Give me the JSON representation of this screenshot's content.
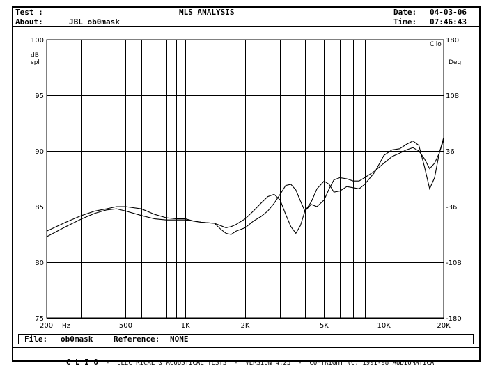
{
  "header": {
    "test_label": "Test :",
    "title": "MLS ANALYSIS",
    "date_label": "Date:",
    "date_value": "04-03-06",
    "about_label": "About:",
    "about_value": "JBL ob0mask",
    "time_label": "Time:",
    "time_value": "07:46:43"
  },
  "footer": {
    "file_label": "File:",
    "file_value": "ob0mask",
    "reference_label": "Reference:",
    "reference_value": "NONE",
    "brand": "C L I O",
    "credits": "-  ELECTRICAL & ACOUSTICAL TESTS  -  VERSION 4.23  -  COPYRIGHT (C) 1991-98 AUDIOMATICA"
  },
  "chart_data": {
    "type": "line",
    "logo": "Clio",
    "x_scale": "log",
    "xlim": [
      200,
      20000
    ],
    "ylim": [
      75,
      100
    ],
    "y2lim": [
      -180,
      180
    ],
    "grid": true,
    "xlabel": "Hz",
    "ylabel": "dB spl",
    "y2label": "Deg",
    "x_tick_labels": [
      {
        "value": 200,
        "label": "200"
      },
      {
        "value": 500,
        "label": "500"
      },
      {
        "value": 1000,
        "label": "1K"
      },
      {
        "value": 2000,
        "label": "2K"
      },
      {
        "value": 5000,
        "label": "5K"
      },
      {
        "value": 10000,
        "label": "10K"
      },
      {
        "value": 20000,
        "label": "20K"
      }
    ],
    "x_grid": [
      200,
      300,
      400,
      500,
      600,
      700,
      800,
      900,
      1000,
      2000,
      3000,
      4000,
      5000,
      6000,
      7000,
      8000,
      9000,
      10000,
      20000
    ],
    "y_ticks": [
      75,
      80,
      85,
      90,
      95,
      100
    ],
    "y2_ticks": [
      -180,
      -108,
      -36,
      36,
      108,
      180
    ],
    "series": [
      {
        "x": [
          200,
          250,
          300,
          350,
          400,
          450,
          500,
          600,
          700,
          800,
          900,
          1000,
          1100,
          1200,
          1400,
          1500,
          1600,
          1700,
          1800,
          2000,
          2200,
          2400,
          2600,
          2800,
          3000,
          3200,
          3400,
          3600,
          3800,
          4000,
          4300,
          4600,
          5000,
          5300,
          5600,
          6000,
          6500,
          7000,
          7500,
          8000,
          9000,
          10000,
          11000,
          12000,
          13000,
          14000,
          15000,
          16000,
          17000,
          18000,
          19000,
          20000
        ],
        "y": [
          82.8,
          83.6,
          84.2,
          84.6,
          84.8,
          85.0,
          85.0,
          84.8,
          84.3,
          84.0,
          83.9,
          83.9,
          83.7,
          83.6,
          83.5,
          83.3,
          83.1,
          83.2,
          83.4,
          83.9,
          84.6,
          85.3,
          85.9,
          86.1,
          85.6,
          84.3,
          83.2,
          82.6,
          83.3,
          84.6,
          85.2,
          85.0,
          85.6,
          86.6,
          87.4,
          87.6,
          87.5,
          87.3,
          87.3,
          87.6,
          88.2,
          88.9,
          89.5,
          89.8,
          90.1,
          90.3,
          90.0,
          89.3,
          88.4,
          88.9,
          89.8,
          91.2
        ]
      },
      {
        "x": [
          200,
          250,
          300,
          350,
          400,
          450,
          500,
          600,
          700,
          800,
          900,
          1000,
          1100,
          1200,
          1400,
          1500,
          1600,
          1700,
          1800,
          2000,
          2200,
          2400,
          2600,
          2800,
          3000,
          3200,
          3400,
          3600,
          3800,
          4000,
          4300,
          4600,
          5000,
          5300,
          5600,
          6000,
          6500,
          7000,
          7500,
          8000,
          9000,
          10000,
          11000,
          12000,
          13000,
          14000,
          15000,
          16000,
          17000,
          18000,
          19000,
          20000
        ],
        "y": [
          82.3,
          83.2,
          83.9,
          84.4,
          84.7,
          84.8,
          84.6,
          84.2,
          83.9,
          83.8,
          83.8,
          83.8,
          83.7,
          83.6,
          83.5,
          83.0,
          82.6,
          82.5,
          82.8,
          83.1,
          83.7,
          84.1,
          84.6,
          85.3,
          86.1,
          86.9,
          87.0,
          86.5,
          85.5,
          84.6,
          85.4,
          86.6,
          87.3,
          87.0,
          86.3,
          86.4,
          86.8,
          86.7,
          86.6,
          87.0,
          88.1,
          89.6,
          90.1,
          90.2,
          90.6,
          90.9,
          90.5,
          88.6,
          86.6,
          87.6,
          89.8,
          91.0
        ]
      }
    ]
  }
}
